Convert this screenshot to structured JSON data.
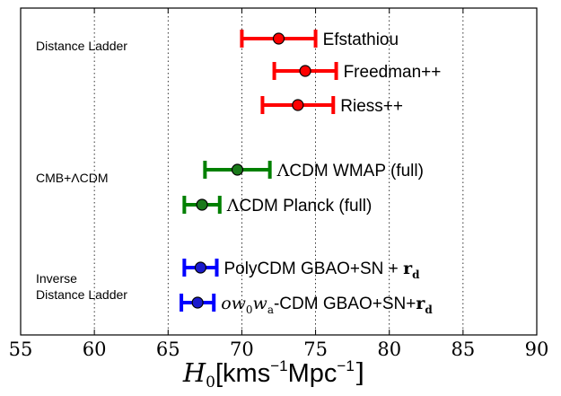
{
  "chart_data": {
    "type": "scatter",
    "title": "",
    "xlabel": {
      "math": "H",
      "math_sub": "0",
      "text_a": "[kms",
      "sup_a": "−1",
      "text_b": "Mpc",
      "sup_b": "−1",
      "text_c": "]"
    },
    "ylabel": "",
    "xlim": [
      55,
      90
    ],
    "xticks": [
      "55",
      "60",
      "65",
      "70",
      "75",
      "80",
      "85",
      "90"
    ],
    "grid": "vertical dotted",
    "groups": [
      {
        "label": "Distance Ladder"
      },
      {
        "label": "CMB+ΛCDM"
      },
      {
        "label_line1": "Inverse",
        "label_line2": "Distance Ladder"
      }
    ],
    "series": [
      {
        "name": "Efstathiou",
        "value": 72.5,
        "err_low": 2.5,
        "err_high": 2.5,
        "color": "#ff0000",
        "marker": "#ff0000",
        "group": 0
      },
      {
        "name": "Freedman++",
        "value": 74.3,
        "err_low": 2.1,
        "err_high": 2.1,
        "color": "#ff0000",
        "marker": "#ff0000",
        "group": 0
      },
      {
        "name": "Riess++",
        "value": 73.8,
        "err_low": 2.4,
        "err_high": 2.4,
        "color": "#ff0000",
        "marker": "#ff0000",
        "group": 0
      },
      {
        "name": "ΛCDM WMAP (full)",
        "value": 69.7,
        "err_low": 2.2,
        "err_high": 2.2,
        "color": "#008000",
        "marker": "#1a7a1a",
        "group": 1
      },
      {
        "name": "ΛCDM Planck (full)",
        "value": 67.3,
        "err_low": 1.2,
        "err_high": 1.2,
        "color": "#008000",
        "marker": "#1a7a1a",
        "group": 1
      },
      {
        "name_sans": "PolyCDM GBAO+SN + ",
        "name_math": "r",
        "name_sub": "d",
        "value": 67.2,
        "err_low": 1.1,
        "err_high": 1.1,
        "color": "#0000ff",
        "marker": "#1a1acc",
        "group": 2
      },
      {
        "name_math_pre": "ow",
        "name_math_pre_sub": "0",
        "name_math_pre2": "w",
        "name_math_pre2_sub": "a",
        "name_sans": "-CDM GBAO+SN+",
        "name_math": "r",
        "name_sub": "d",
        "value": 67.0,
        "err_low": 1.1,
        "err_high": 1.1,
        "color": "#0000ff",
        "marker": "#1a1acc",
        "group": 2
      }
    ]
  }
}
